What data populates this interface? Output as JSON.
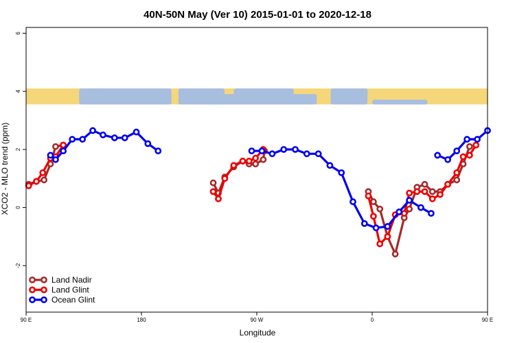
{
  "chart_data": {
    "type": "line",
    "title": "40N-50N May (Ver 10)   2015-01-01 to 2020-12-18",
    "xlabel": "Longitude",
    "ylabel": "XCO2 - MLO trend (ppm)",
    "xlim": [
      90,
      450
    ],
    "ylim": [
      -3.6,
      6.2
    ],
    "x_ticks": [
      {
        "value": 90,
        "label": "90 E"
      },
      {
        "value": 180,
        "label": "180"
      },
      {
        "value": 270,
        "label": "90 W"
      },
      {
        "value": 360,
        "label": "0"
      },
      {
        "value": 450,
        "label": "90 E"
      },
      {
        "value": 540,
        "label": "180"
      }
    ],
    "y_ticks": [
      {
        "value": -2,
        "label": "-2"
      },
      {
        "value": 0,
        "label": "0"
      },
      {
        "value": 2,
        "label": "2"
      },
      {
        "value": 4,
        "label": "4"
      },
      {
        "value": 6,
        "label": "6"
      }
    ],
    "map_band": {
      "y_top": 4.1,
      "y_bottom": 3.55,
      "land_color": "#f5d77a",
      "ocean_color": "#a8bedf"
    },
    "legend": {
      "position": "bottom-left"
    },
    "series": [
      {
        "name": "Land Nadir",
        "color": "#a52a2a",
        "segments": [
          [
            [
              92,
              0.8
            ],
            [
              98,
              0.9
            ],
            [
              104,
              0.95
            ],
            [
              109,
              1.5
            ],
            [
              113,
              2.1
            ],
            [
              119,
              2.15
            ]
          ],
          [
            [
              236,
              0.85
            ],
            [
              240,
              0.5
            ],
            [
              245,
              1.05
            ],
            [
              252,
              1.4
            ],
            [
              259,
              1.6
            ],
            [
              264,
              1.5
            ],
            [
              269,
              1.5
            ],
            [
              275,
              1.65
            ],
            [
              276,
              1.95
            ]
          ],
          [
            [
              357,
              0.55
            ],
            [
              361,
              0.2
            ],
            [
              366,
              -0.05
            ],
            [
              372,
              -1.0
            ],
            [
              378,
              -1.6
            ],
            [
              385,
              -0.35
            ],
            [
              389,
              -0.05
            ],
            [
              395,
              0.7
            ],
            [
              401,
              0.8
            ],
            [
              407,
              0.55
            ],
            [
              413,
              0.55
            ],
            [
              419,
              0.8
            ],
            [
              426,
              0.95
            ],
            [
              431,
              1.5
            ],
            [
              436,
              2.1
            ]
          ]
        ]
      },
      {
        "name": "Land Glint",
        "color": "#ee0000",
        "segments": [
          [
            [
              92,
              0.75
            ],
            [
              98,
              0.9
            ],
            [
              103,
              1.2
            ],
            [
              109,
              1.7
            ],
            [
              113,
              1.75
            ],
            [
              119,
              2.15
            ]
          ],
          [
            [
              236,
              0.55
            ],
            [
              240,
              0.3
            ],
            [
              245,
              1.0
            ],
            [
              252,
              1.45
            ],
            [
              259,
              1.6
            ],
            [
              264,
              1.6
            ],
            [
              269,
              1.7
            ],
            [
              275,
              2.0
            ]
          ],
          [
            [
              357,
              0.4
            ],
            [
              361,
              -0.3
            ],
            [
              366,
              -1.25
            ],
            [
              372,
              -1.0
            ],
            [
              378,
              -0.25
            ],
            [
              385,
              -0.2
            ],
            [
              389,
              0.5
            ],
            [
              395,
              0.55
            ],
            [
              401,
              0.55
            ],
            [
              407,
              0.3
            ],
            [
              413,
              0.45
            ],
            [
              419,
              0.8
            ],
            [
              426,
              1.2
            ],
            [
              431,
              1.75
            ],
            [
              436,
              1.8
            ],
            [
              441,
              2.15
            ]
          ]
        ]
      },
      {
        "name": "Ocean Glint",
        "color": "#0000ee",
        "segments": [
          [
            [
              109,
              1.8
            ],
            [
              113,
              1.65
            ],
            [
              119,
              1.95
            ],
            [
              126,
              2.35
            ],
            [
              134,
              2.35
            ],
            [
              142,
              2.65
            ],
            [
              150,
              2.5
            ],
            [
              159,
              2.4
            ],
            [
              167,
              2.4
            ],
            [
              176,
              2.6
            ],
            [
              185,
              2.2
            ],
            [
              193,
              1.95
            ]
          ],
          [
            [
              266,
              1.95
            ],
            [
              274,
              1.95
            ],
            [
              282,
              1.85
            ],
            [
              291,
              2.0
            ],
            [
              300,
              2.0
            ],
            [
              309,
              1.85
            ],
            [
              318,
              1.85
            ],
            [
              327,
              1.45
            ],
            [
              336,
              1.2
            ],
            [
              345,
              0.2
            ],
            [
              354,
              -0.55
            ],
            [
              363,
              -0.7
            ],
            [
              372,
              -0.65
            ],
            [
              381,
              -0.15
            ],
            [
              389,
              0.25
            ],
            [
              398,
              0.0
            ],
            [
              406,
              -0.2
            ]
          ],
          [
            [
              411,
              1.8
            ],
            [
              419,
              1.65
            ],
            [
              426,
              1.95
            ],
            [
              434,
              2.35
            ],
            [
              442,
              2.35
            ],
            [
              450,
              2.65
            ]
          ]
        ]
      }
    ]
  }
}
